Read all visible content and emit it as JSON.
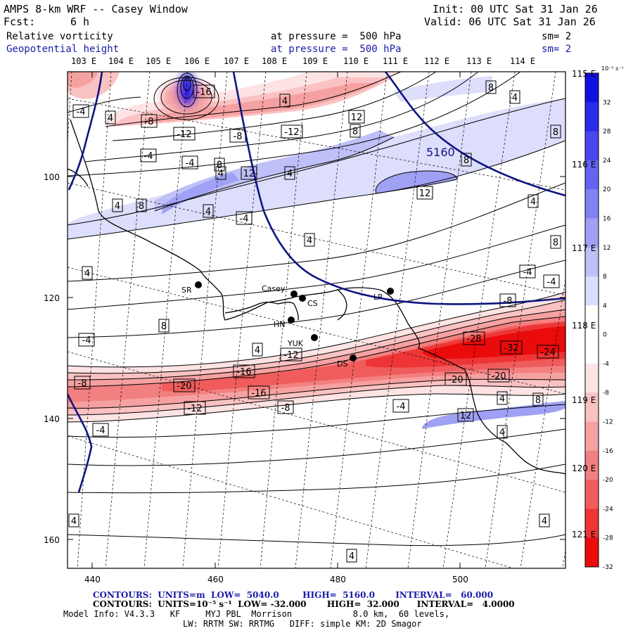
{
  "header": {
    "title": "AMPS 8-km WRF -- Casey Window",
    "forecast_label": "Fcst:",
    "forecast_value": "6 h",
    "init": "Init: 00 UTC Sat 31 Jan 26",
    "valid": "Valid: 06 UTC Sat 31 Jan 26",
    "fields": [
      {
        "name": "Relative vorticity",
        "pressure": "at pressure =  500 hPa",
        "smooth": "sm= 2",
        "color": "#000000"
      },
      {
        "name": "Geopotential height",
        "pressure": "at pressure =  500 hPa",
        "smooth": "sm= 2",
        "color": "#1a1aa8"
      }
    ]
  },
  "axes": {
    "top_longitudes": [
      "103 E",
      "104 E",
      "105 E",
      "106 E",
      "107 E",
      "108 E",
      "109 E",
      "110 E",
      "111 E",
      "112 E",
      "113 E",
      "114 E"
    ],
    "right_longitudes": [
      "115 E",
      "116 E",
      "117 E",
      "118 E",
      "119 E",
      "120 E",
      "121 E"
    ],
    "x_ticks": [
      "440",
      "460",
      "480",
      "500"
    ],
    "y_ticks": [
      "100",
      "120",
      "140",
      "160"
    ]
  },
  "colorbar": {
    "unit": "10⁻⁵ s⁻¹",
    "labels": [
      "32",
      "28",
      "24",
      "20",
      "16",
      "12",
      "8",
      "4",
      "0",
      "-4",
      "-8",
      "-12",
      "-16",
      "-20",
      "-24",
      "-28",
      "-32"
    ],
    "colors": [
      "#1010e0",
      "#2b2be8",
      "#4848ee",
      "#6464f0",
      "#8282f2",
      "#a0a0f4",
      "#bfc0f7",
      "#dddefb",
      "#ffffff",
      "#ffffff",
      "#fde3e3",
      "#fac2c2",
      "#f6a1a1",
      "#f38080",
      "#f05c5c",
      "#ee3535",
      "#ea0b0b"
    ]
  },
  "stations": [
    "SR",
    "Casey",
    "CS",
    "HN",
    "YUK",
    "DS",
    "LP"
  ],
  "height_label": "5160",
  "vorticity_labels": [
    "-4",
    "4",
    "-8",
    "-16",
    "-12",
    "-4",
    "4",
    "8",
    "-8",
    "-12",
    "12",
    "8",
    "4",
    "8",
    "-4",
    "8",
    "12",
    "-4",
    "4",
    "4",
    "4",
    "8",
    "-4",
    "12",
    "4",
    "8",
    "8",
    "4",
    "-4",
    "8",
    "4",
    "4",
    "-8",
    "-4",
    "-12",
    "-28",
    "-32",
    "-24",
    "-8",
    "-16",
    "-20",
    "-16",
    "-20",
    "-20",
    "-12",
    "-8",
    "-4",
    "4",
    "8",
    "12",
    "4",
    "-4",
    "4",
    "4",
    "4",
    "4"
  ],
  "footer": {
    "line1": "CONTOURS:  UNITS=m  LOW=  5040.0        HIGH=  5160.0       INTERVAL=   60.000",
    "line2": "CONTOURS:  UNITS=10⁻⁵ s⁻¹  LOW= -32.000       HIGH=  32.000      INTERVAL=   4.0000",
    "line3": "Model Info: V4.3.3   KF     MYJ PBL  Morrison            8.0 km,  60 levels,",
    "line4": "LW: RRTM SW: RRTMG   DIFF: simple KM: 2D Smagor"
  }
}
